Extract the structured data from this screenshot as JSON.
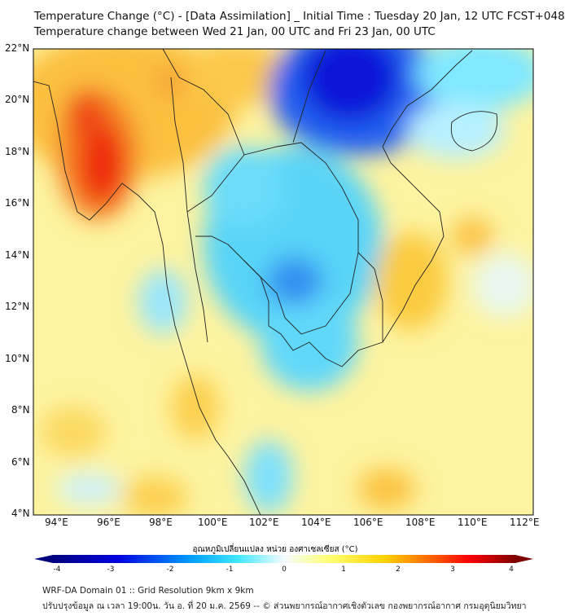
{
  "title": {
    "line1": "Temperature Change (°C) - [Data Assimilation] _ Initial Time : Tuesday 20 Jan, 12 UTC FCST+048",
    "line2": "Temperature change between Wed 21 Jan, 00 UTC and Fri 23 Jan, 00 UTC"
  },
  "axes": {
    "lat_labels": [
      "22°N",
      "20°N",
      "18°N",
      "16°N",
      "14°N",
      "12°N",
      "10°N",
      "8°N",
      "6°N",
      "4°N"
    ],
    "lon_labels": [
      "94°E",
      "96°E",
      "98°E",
      "100°E",
      "102°E",
      "104°E",
      "106°E",
      "108°E",
      "110°E",
      "112°E"
    ]
  },
  "colorbar": {
    "title": "อุณหภูมิเปลี่ยนแปลง หน่วย องศาเซลเซียส (°C)",
    "ticks": [
      "-4",
      "-3",
      "-2",
      "-1",
      "0",
      "1",
      "2",
      "3",
      "4"
    ],
    "min": -4,
    "max": 4,
    "colors": [
      "#00007f",
      "#0000ff",
      "#00bfff",
      "#e8fbff",
      "#ffff80",
      "#ffd000",
      "#ff7000",
      "#ff0000",
      "#7f0000"
    ]
  },
  "footer": {
    "line1": "WRF-DA Domain 01 :: Grid Resolution 9km x 9km",
    "line2": "ปรับปรุงข้อมูล ณ เวลา 19:00น. วัน อ. ที่ 20 ม.ค. 2569 -- © ส่วนพยากรณ์อากาศเชิงตัวเลข กองพยากรณ์อากาศ กรมอุตุนิยมวิทยา"
  }
}
